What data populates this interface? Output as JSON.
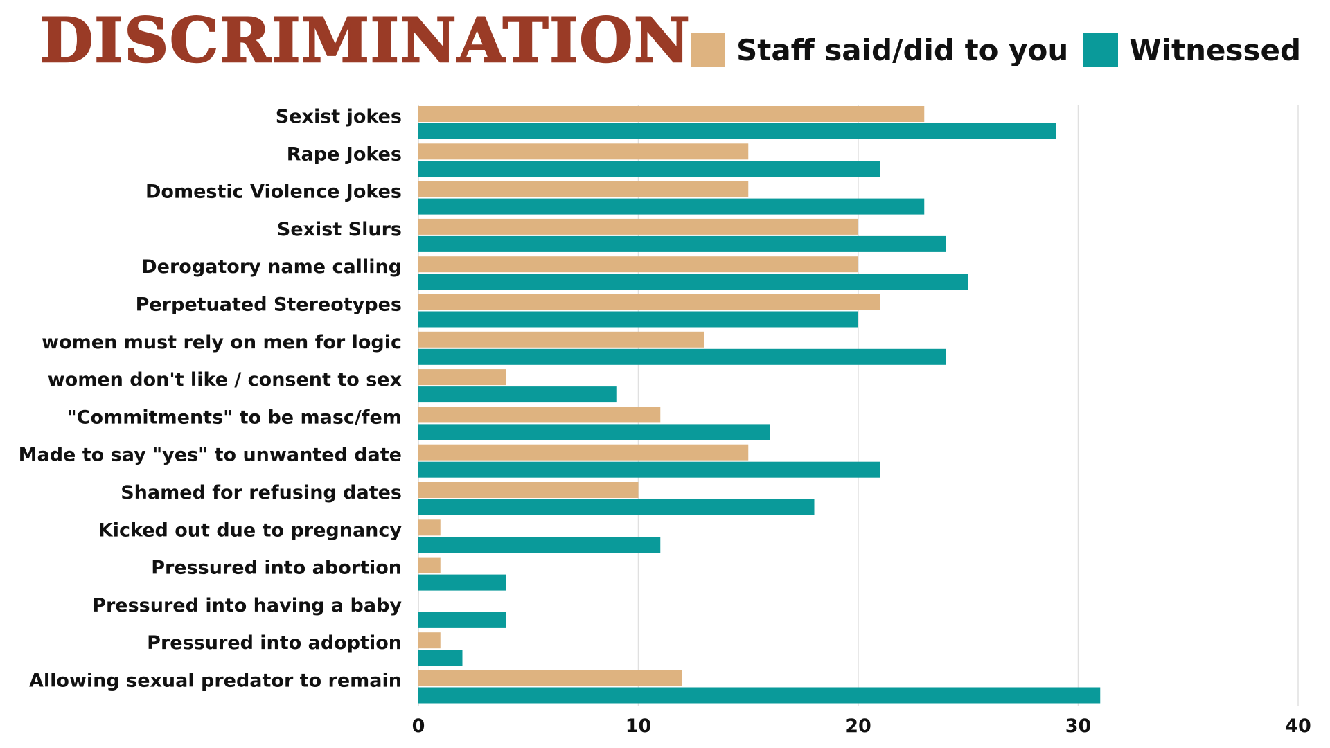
{
  "chart_data": {
    "type": "bar",
    "orientation": "horizontal",
    "title": "DISCRIMINATION",
    "categories": [
      "Sexist jokes",
      "Rape Jokes",
      "Domestic Violence Jokes",
      "Sexist Slurs",
      "Derogatory name calling",
      "Perpetuated Stereotypes",
      "women must rely on men for logic",
      "women don't like / consent to sex",
      "\"Commitments\" to be masc/fem",
      "Made to say \"yes\" to unwanted date",
      "Shamed for refusing dates",
      "Kicked out due to pregnancy",
      "Pressured into abortion",
      "Pressured into having a baby",
      "Pressured into adoption",
      "Allowing sexual predator to remain"
    ],
    "series": [
      {
        "name": "Staff said/did to you",
        "color": "#deb380",
        "values": [
          23,
          15,
          15,
          20,
          20,
          21,
          13,
          4,
          11,
          15,
          10,
          1,
          1,
          0,
          1,
          12
        ]
      },
      {
        "name": "Witnessed",
        "color": "#0a9a9a",
        "values": [
          29,
          21,
          23,
          24,
          25,
          20,
          24,
          9,
          16,
          21,
          18,
          11,
          4,
          4,
          2,
          31
        ]
      }
    ],
    "xlim": [
      0,
      40
    ],
    "xticks": [
      "0",
      "10",
      "20",
      "30",
      "40"
    ],
    "grid": true,
    "legend_position": "top-right",
    "title_color": "#9a3b26"
  }
}
